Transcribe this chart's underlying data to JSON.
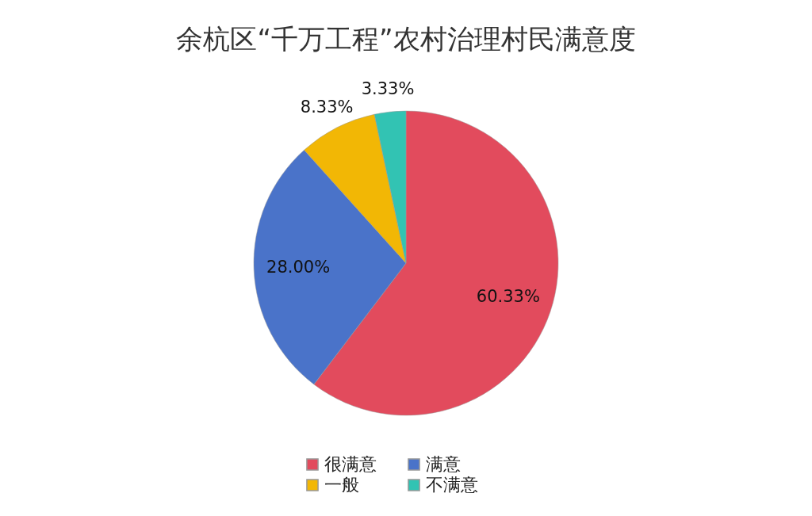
{
  "chart_data": {
    "type": "pie",
    "title": "余杭区“千万工程”农村治理村民满意度",
    "categories": [
      "很满意",
      "满意",
      "一般",
      "不满意"
    ],
    "values": [
      60.33,
      28.0,
      8.33,
      3.33
    ],
    "colors": [
      "#e24b5d",
      "#4a73c9",
      "#f2b705",
      "#32c3b3"
    ],
    "value_labels": [
      "60.33%",
      "28.00%",
      "8.33%",
      "3.33%"
    ],
    "legend": "bottom"
  }
}
